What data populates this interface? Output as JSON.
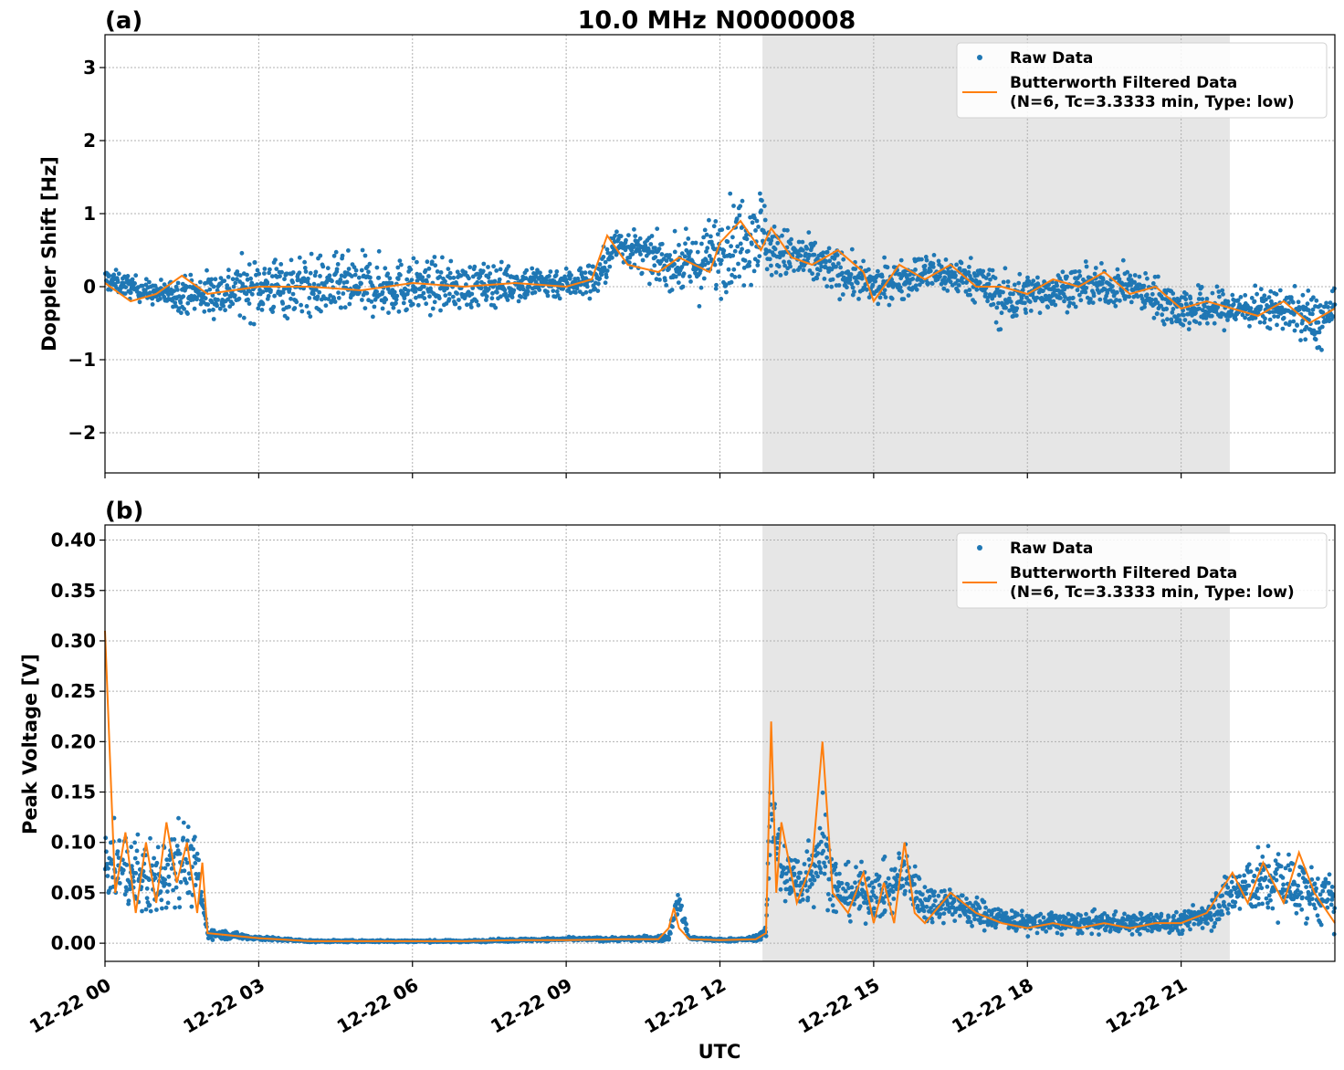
{
  "figure": {
    "title": "10.0 MHz N0000008",
    "xlabel": "UTC"
  },
  "colors": {
    "raw": "#1f77b4",
    "filtered": "#ff7f0e",
    "shade": "#e6e6e6",
    "grid": "#b0b0b0"
  },
  "chart_data": [
    {
      "type": "scatter",
      "panel_label": "(a)",
      "ylabel": "Doppler Shift [Hz]",
      "xlim_hours": [
        0,
        24
      ],
      "ylim": [
        -2.55,
        3.45
      ],
      "x_ticks": [
        "12-22 00",
        "12-22 03",
        "12-22 06",
        "12-22 09",
        "12-22 12",
        "12-22 15",
        "12-22 18",
        "12-22 21"
      ],
      "y_ticks": [
        "−2",
        "−1",
        "0",
        "1",
        "2",
        "3"
      ],
      "y_tick_values": [
        -2,
        -1,
        0,
        1,
        2,
        3
      ],
      "grid": true,
      "shaded_interval_hours": [
        12.83,
        21.95
      ],
      "legend": {
        "placement": "top-right",
        "entries": [
          "Raw Data",
          "Butterworth Filtered Data",
          "(N=6, Tc=3.3333 min, Type: low)"
        ]
      },
      "series": [
        {
          "name": "Raw Data",
          "kind": "points",
          "x_hours": [
            0,
            1,
            2,
            3,
            4,
            5,
            6,
            7,
            8,
            9,
            9.6,
            10,
            11,
            11.6,
            12,
            12.5,
            12.8,
            13,
            14,
            15,
            16,
            17,
            17.5,
            18,
            19,
            20,
            21,
            22,
            23,
            23.7,
            24
          ],
          "y_center": [
            0.1,
            -0.1,
            -0.1,
            0.0,
            0.0,
            0.0,
            0.0,
            0.0,
            0.05,
            0.05,
            0.1,
            0.6,
            0.3,
            0.3,
            0.5,
            0.7,
            0.8,
            0.5,
            0.3,
            0.0,
            0.2,
            0.1,
            -0.2,
            -0.1,
            0.0,
            0.0,
            -0.3,
            -0.3,
            -0.3,
            -0.5,
            -0.3
          ],
          "y_spread": [
            0.3,
            0.3,
            0.6,
            0.8,
            0.8,
            0.8,
            0.7,
            0.6,
            0.5,
            0.4,
            0.5,
            0.5,
            0.6,
            0.9,
            1.1,
            1.2,
            1.2,
            0.7,
            0.6,
            0.5,
            0.5,
            0.5,
            0.8,
            0.5,
            0.5,
            0.5,
            0.6,
            0.5,
            0.5,
            0.8,
            0.4
          ]
        },
        {
          "name": "Butterworth Filtered Data",
          "kind": "line",
          "x_hours": [
            0,
            0.5,
            1,
            1.5,
            2,
            3,
            4,
            5,
            6,
            7,
            8,
            9,
            9.5,
            9.8,
            10.2,
            10.8,
            11.2,
            11.8,
            12.0,
            12.4,
            12.8,
            13.0,
            13.4,
            13.8,
            14.3,
            14.8,
            15.0,
            15.5,
            16.0,
            16.5,
            17.0,
            17.5,
            18.0,
            18.5,
            19.0,
            19.5,
            20.0,
            20.5,
            21.0,
            21.5,
            22.0,
            22.5,
            23.0,
            23.5,
            24
          ],
          "y": [
            0.05,
            -0.2,
            -0.1,
            0.15,
            -0.1,
            0.0,
            0.0,
            -0.05,
            0.05,
            0.0,
            0.05,
            0.0,
            0.1,
            0.7,
            0.3,
            0.2,
            0.4,
            0.2,
            0.6,
            0.9,
            0.5,
            0.8,
            0.4,
            0.3,
            0.5,
            0.2,
            -0.2,
            0.3,
            0.1,
            0.3,
            0.0,
            0.0,
            -0.1,
            0.1,
            0.0,
            0.2,
            -0.1,
            0.0,
            -0.3,
            -0.2,
            -0.3,
            -0.4,
            -0.2,
            -0.5,
            -0.3
          ]
        }
      ]
    },
    {
      "type": "scatter",
      "panel_label": "(b)",
      "ylabel": "Peak Voltage [V]",
      "xlim_hours": [
        0,
        24
      ],
      "ylim": [
        -0.018,
        0.415
      ],
      "x_ticks": [
        "12-22 00",
        "12-22 03",
        "12-22 06",
        "12-22 09",
        "12-22 12",
        "12-22 15",
        "12-22 18",
        "12-22 21"
      ],
      "y_ticks": [
        "0.00",
        "0.05",
        "0.10",
        "0.15",
        "0.20",
        "0.25",
        "0.30",
        "0.35",
        "0.40"
      ],
      "y_tick_values": [
        0,
        0.05,
        0.1,
        0.15,
        0.2,
        0.25,
        0.3,
        0.35,
        0.4
      ],
      "grid": true,
      "shaded_interval_hours": [
        12.83,
        21.95
      ],
      "legend": {
        "placement": "top-right",
        "entries": [
          "Raw Data",
          "Butterworth Filtered Data",
          "(N=6, Tc=3.3333 min, Type: low)"
        ]
      },
      "series": [
        {
          "name": "Raw Data",
          "kind": "points",
          "x_hours": [
            0,
            0.5,
            1,
            1.4,
            1.8,
            2.0,
            3,
            4,
            5,
            6,
            7,
            8,
            9,
            10,
            11,
            11.1,
            11.2,
            11.4,
            12,
            12.6,
            12.9,
            13.0,
            13.2,
            13.6,
            14.0,
            14.3,
            14.8,
            15.3,
            15.6,
            16,
            16.5,
            17,
            17.5,
            18,
            18.5,
            19,
            19.5,
            20,
            20.5,
            21,
            21.5,
            22,
            22.5,
            23,
            23.5,
            24
          ],
          "y_center": [
            0.08,
            0.07,
            0.06,
            0.09,
            0.07,
            0.01,
            0.005,
            0.002,
            0.002,
            0.002,
            0.002,
            0.003,
            0.004,
            0.004,
            0.005,
            0.03,
            0.04,
            0.005,
            0.003,
            0.004,
            0.01,
            0.15,
            0.07,
            0.06,
            0.1,
            0.05,
            0.05,
            0.05,
            0.07,
            0.04,
            0.04,
            0.03,
            0.025,
            0.02,
            0.02,
            0.02,
            0.02,
            0.02,
            0.02,
            0.02,
            0.03,
            0.05,
            0.06,
            0.06,
            0.05,
            0.04
          ],
          "y_spread": [
            0.06,
            0.07,
            0.08,
            0.09,
            0.06,
            0.01,
            0.004,
            0.002,
            0.002,
            0.002,
            0.002,
            0.003,
            0.003,
            0.004,
            0.006,
            0.02,
            0.02,
            0.004,
            0.003,
            0.004,
            0.01,
            0.13,
            0.06,
            0.06,
            0.1,
            0.05,
            0.05,
            0.05,
            0.06,
            0.04,
            0.03,
            0.03,
            0.02,
            0.02,
            0.02,
            0.02,
            0.02,
            0.02,
            0.02,
            0.02,
            0.03,
            0.05,
            0.06,
            0.07,
            0.05,
            0.05
          ]
        },
        {
          "name": "Butterworth Filtered Data",
          "kind": "line",
          "x_hours": [
            0,
            0.2,
            0.4,
            0.6,
            0.8,
            1.0,
            1.2,
            1.4,
            1.6,
            1.8,
            1.9,
            2.0,
            3,
            4,
            5,
            6,
            7,
            8,
            9,
            10,
            10.8,
            11.0,
            11.1,
            11.2,
            11.4,
            12,
            12.7,
            12.9,
            13.0,
            13.1,
            13.2,
            13.5,
            13.8,
            14.0,
            14.2,
            14.5,
            14.8,
            15.0,
            15.2,
            15.4,
            15.6,
            15.8,
            16.0,
            16.5,
            17.0,
            17.5,
            18.0,
            18.5,
            19.0,
            19.5,
            20.0,
            20.5,
            21.0,
            21.5,
            22.0,
            22.3,
            22.6,
            23.0,
            23.3,
            23.6,
            24
          ],
          "y": [
            0.31,
            0.05,
            0.11,
            0.03,
            0.1,
            0.04,
            0.12,
            0.06,
            0.1,
            0.03,
            0.08,
            0.01,
            0.005,
            0.002,
            0.002,
            0.002,
            0.002,
            0.003,
            0.003,
            0.004,
            0.004,
            0.015,
            0.035,
            0.015,
            0.004,
            0.003,
            0.004,
            0.01,
            0.22,
            0.05,
            0.12,
            0.04,
            0.08,
            0.2,
            0.05,
            0.03,
            0.07,
            0.02,
            0.06,
            0.02,
            0.1,
            0.03,
            0.02,
            0.05,
            0.03,
            0.02,
            0.015,
            0.02,
            0.015,
            0.02,
            0.015,
            0.02,
            0.02,
            0.03,
            0.07,
            0.04,
            0.08,
            0.04,
            0.09,
            0.05,
            0.02
          ]
        }
      ]
    }
  ]
}
